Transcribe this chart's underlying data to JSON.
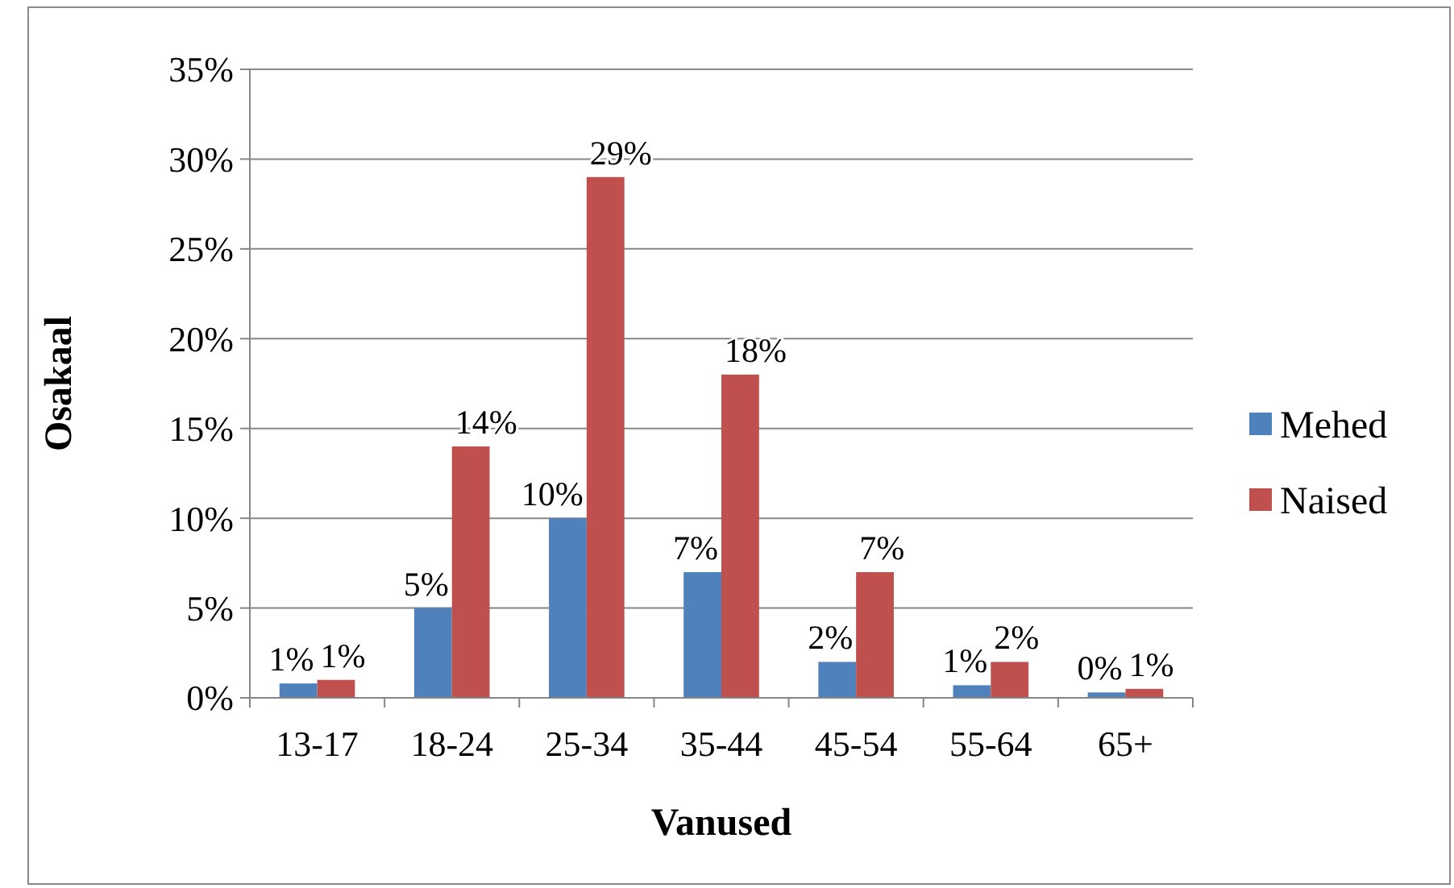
{
  "chart_data": {
    "type": "bar",
    "xlabel": "Vanused",
    "ylabel": "Osakaal",
    "categories": [
      "13-17",
      "18-24",
      "25-34",
      "35-44",
      "45-54",
      "55-64",
      "65+"
    ],
    "series": [
      {
        "name": "Mehed",
        "color": "#4f81bd",
        "values": [
          0.8,
          5,
          10,
          7,
          2,
          0.7,
          0.3
        ],
        "value_labels": [
          "1%",
          "5%",
          "10%",
          "7%",
          "2%",
          "1%",
          "0%"
        ]
      },
      {
        "name": "Naised",
        "color": "#c0504d",
        "values": [
          1,
          14,
          29,
          18,
          7,
          2,
          0.5
        ],
        "value_labels": [
          "1%",
          "14%",
          "29%",
          "18%",
          "7%",
          "2%",
          "1%"
        ]
      }
    ],
    "ylim": [
      0,
      35
    ],
    "yticks": [
      {
        "value": 0,
        "label": "0%"
      },
      {
        "value": 5,
        "label": "5%"
      },
      {
        "value": 10,
        "label": "10%"
      },
      {
        "value": 15,
        "label": "15%"
      },
      {
        "value": 20,
        "label": "20%"
      },
      {
        "value": 25,
        "label": "25%"
      },
      {
        "value": 30,
        "label": "30%"
      },
      {
        "value": 35,
        "label": "35%"
      }
    ],
    "grid": "y",
    "legend": "right"
  }
}
